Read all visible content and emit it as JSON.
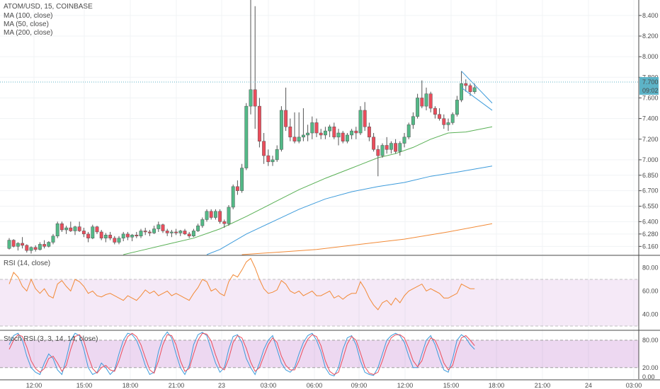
{
  "header": {
    "symbol": "ATOM/USD, 15, COINBASE",
    "studies": [
      "MA (100, close)",
      "MA (50, close)",
      "MA (200, close)"
    ]
  },
  "price_tag": {
    "price": "7.700",
    "countdown": "09:02",
    "color": "#5db3c7"
  },
  "chart_data": [
    {
      "type": "candlestick",
      "title": "ATOM/USD, 15, COINBASE",
      "xlabel": "",
      "ylabel": "",
      "x_ticks": [
        "12:00",
        "15:00",
        "18:00",
        "21:00",
        "23",
        "03:00",
        "06:00",
        "09:00",
        "12:00",
        "15:00",
        "18:00",
        "21:00",
        "24",
        "03:00"
      ],
      "y_ticks": [
        "8.400",
        "8.200",
        "8.000",
        "7.800",
        "7.600",
        "7.400",
        "7.200",
        "7.000",
        "6.850",
        "6.700",
        "6.550",
        "6.400",
        "6.280",
        "6.160"
      ],
      "ylim": [
        6.08,
        8.55
      ],
      "colors": {
        "up": "#53b987",
        "down": "#eb4d5c"
      },
      "candles": [
        [
          6.14,
          6.24,
          6.13,
          6.22
        ],
        [
          6.22,
          6.23,
          6.15,
          6.16
        ],
        [
          6.16,
          6.2,
          6.12,
          6.19
        ],
        [
          6.19,
          6.25,
          6.14,
          6.17
        ],
        [
          6.17,
          6.18,
          6.1,
          6.12
        ],
        [
          6.12,
          6.16,
          6.09,
          6.15
        ],
        [
          6.15,
          6.17,
          6.11,
          6.13
        ],
        [
          6.13,
          6.2,
          6.12,
          6.18
        ],
        [
          6.18,
          6.22,
          6.14,
          6.16
        ],
        [
          6.16,
          6.21,
          6.15,
          6.2
        ],
        [
          6.2,
          6.28,
          6.18,
          6.26
        ],
        [
          6.26,
          6.4,
          6.24,
          6.38
        ],
        [
          6.38,
          6.4,
          6.3,
          6.32
        ],
        [
          6.32,
          6.36,
          6.28,
          6.34
        ],
        [
          6.34,
          6.4,
          6.3,
          6.31
        ],
        [
          6.31,
          6.36,
          6.27,
          6.35
        ],
        [
          6.35,
          6.4,
          6.3,
          6.31
        ],
        [
          6.31,
          6.34,
          6.25,
          6.28
        ],
        [
          6.28,
          6.3,
          6.2,
          6.24
        ],
        [
          6.24,
          6.37,
          6.23,
          6.35
        ],
        [
          6.35,
          6.36,
          6.28,
          6.3
        ],
        [
          6.3,
          6.32,
          6.22,
          6.24
        ],
        [
          6.24,
          6.29,
          6.2,
          6.27
        ],
        [
          6.27,
          6.3,
          6.22,
          6.24
        ],
        [
          6.24,
          6.26,
          6.18,
          6.2
        ],
        [
          6.2,
          6.26,
          6.18,
          6.24
        ],
        [
          6.24,
          6.3,
          6.21,
          6.28
        ],
        [
          6.28,
          6.3,
          6.22,
          6.25
        ],
        [
          6.25,
          6.28,
          6.21,
          6.27
        ],
        [
          6.27,
          6.3,
          6.24,
          6.26
        ],
        [
          6.26,
          6.33,
          6.24,
          6.31
        ],
        [
          6.31,
          6.34,
          6.27,
          6.3
        ],
        [
          6.3,
          6.32,
          6.26,
          6.29
        ],
        [
          6.29,
          6.36,
          6.28,
          6.33
        ],
        [
          6.33,
          6.4,
          6.3,
          6.37
        ],
        [
          6.37,
          6.38,
          6.29,
          6.31
        ],
        [
          6.31,
          6.33,
          6.26,
          6.29
        ],
        [
          6.29,
          6.32,
          6.25,
          6.3
        ],
        [
          6.3,
          6.33,
          6.27,
          6.29
        ],
        [
          6.29,
          6.32,
          6.26,
          6.31
        ],
        [
          6.31,
          6.33,
          6.27,
          6.28
        ],
        [
          6.28,
          6.3,
          6.24,
          6.26
        ],
        [
          6.26,
          6.33,
          6.25,
          6.31
        ],
        [
          6.31,
          6.38,
          6.3,
          6.36
        ],
        [
          6.36,
          6.44,
          6.34,
          6.42
        ],
        [
          6.42,
          6.52,
          6.4,
          6.5
        ],
        [
          6.5,
          6.52,
          6.42,
          6.44
        ],
        [
          6.44,
          6.52,
          6.42,
          6.5
        ],
        [
          6.5,
          6.52,
          6.38,
          6.4
        ],
        [
          6.4,
          6.42,
          6.34,
          6.38
        ],
        [
          6.38,
          6.56,
          6.36,
          6.54
        ],
        [
          6.54,
          6.76,
          6.52,
          6.74
        ],
        [
          6.74,
          6.8,
          6.66,
          6.7
        ],
        [
          6.7,
          6.96,
          6.68,
          6.92
        ],
        [
          6.92,
          7.55,
          6.9,
          7.52
        ],
        [
          7.52,
          8.55,
          7.44,
          7.68
        ],
        [
          7.68,
          8.49,
          7.3,
          7.52
        ],
        [
          7.52,
          7.6,
          7.12,
          7.18
        ],
        [
          7.18,
          7.26,
          6.96,
          7.04
        ],
        [
          7.04,
          7.1,
          6.94,
          6.98
        ],
        [
          6.98,
          7.04,
          6.94,
          7.0
        ],
        [
          7.0,
          7.14,
          6.98,
          7.1
        ],
        [
          7.1,
          7.52,
          7.08,
          7.48
        ],
        [
          7.48,
          7.7,
          7.28,
          7.32
        ],
        [
          7.32,
          7.4,
          7.18,
          7.22
        ],
        [
          7.22,
          7.46,
          7.16,
          7.18
        ],
        [
          7.18,
          7.46,
          7.16,
          7.22
        ],
        [
          7.22,
          7.5,
          7.18,
          7.24
        ],
        [
          7.24,
          7.34,
          7.18,
          7.26
        ],
        [
          7.26,
          7.42,
          7.2,
          7.36
        ],
        [
          7.36,
          7.4,
          7.22,
          7.26
        ],
        [
          7.26,
          7.3,
          7.2,
          7.24
        ],
        [
          7.24,
          7.32,
          7.2,
          7.28
        ],
        [
          7.28,
          7.34,
          7.22,
          7.32
        ],
        [
          7.32,
          7.36,
          7.2,
          7.22
        ],
        [
          7.22,
          7.3,
          7.14,
          7.26
        ],
        [
          7.26,
          7.28,
          7.16,
          7.18
        ],
        [
          7.18,
          7.26,
          7.16,
          7.24
        ],
        [
          7.24,
          7.3,
          7.2,
          7.28
        ],
        [
          7.28,
          7.32,
          7.2,
          7.26
        ],
        [
          7.26,
          7.52,
          7.24,
          7.48
        ],
        [
          7.48,
          7.56,
          7.28,
          7.32
        ],
        [
          7.32,
          7.36,
          7.18,
          7.22
        ],
        [
          7.22,
          7.26,
          7.08,
          7.1
        ],
        [
          7.1,
          7.14,
          6.84,
          7.04
        ],
        [
          7.04,
          7.16,
          7.02,
          7.14
        ],
        [
          7.14,
          7.22,
          7.06,
          7.1
        ],
        [
          7.1,
          7.18,
          7.06,
          7.16
        ],
        [
          7.16,
          7.2,
          7.06,
          7.08
        ],
        [
          7.08,
          7.18,
          7.04,
          7.16
        ],
        [
          7.16,
          7.26,
          7.12,
          7.22
        ],
        [
          7.22,
          7.36,
          7.2,
          7.34
        ],
        [
          7.34,
          7.46,
          7.3,
          7.42
        ],
        [
          7.42,
          7.64,
          7.4,
          7.6
        ],
        [
          7.6,
          7.77,
          7.5,
          7.52
        ],
        [
          7.52,
          7.7,
          7.48,
          7.64
        ],
        [
          7.64,
          7.66,
          7.46,
          7.5
        ],
        [
          7.5,
          7.52,
          7.4,
          7.44
        ],
        [
          7.44,
          7.5,
          7.38,
          7.4
        ],
        [
          7.4,
          7.44,
          7.3,
          7.34
        ],
        [
          7.34,
          7.4,
          7.28,
          7.36
        ],
        [
          7.36,
          7.46,
          7.34,
          7.44
        ],
        [
          7.44,
          7.62,
          7.42,
          7.58
        ],
        [
          7.58,
          7.86,
          7.56,
          7.74
        ],
        [
          7.74,
          7.78,
          7.66,
          7.72
        ],
        [
          7.72,
          7.74,
          7.62,
          7.66
        ],
        [
          7.66,
          7.74,
          7.64,
          7.7
        ]
      ],
      "series": [
        {
          "name": "MA (50, close)",
          "color": "#59b055",
          "values": [
            [
              26,
              6.08
            ],
            [
              30,
              6.12
            ],
            [
              36,
              6.18
            ],
            [
              42,
              6.24
            ],
            [
              48,
              6.33
            ],
            [
              54,
              6.45
            ],
            [
              60,
              6.58
            ],
            [
              66,
              6.71
            ],
            [
              72,
              6.82
            ],
            [
              78,
              6.92
            ],
            [
              84,
              7.02
            ],
            [
              88,
              7.06
            ],
            [
              92,
              7.12
            ],
            [
              96,
              7.2
            ],
            [
              100,
              7.26
            ],
            [
              104,
              7.27
            ],
            [
              110,
              7.32
            ]
          ]
        },
        {
          "name": "MA (100, close)",
          "color": "#3d9bdb",
          "values": [
            [
              45,
              6.08
            ],
            [
              48,
              6.13
            ],
            [
              54,
              6.28
            ],
            [
              60,
              6.4
            ],
            [
              66,
              6.52
            ],
            [
              72,
              6.62
            ],
            [
              78,
              6.69
            ],
            [
              84,
              6.74
            ],
            [
              90,
              6.78
            ],
            [
              96,
              6.84
            ],
            [
              102,
              6.88
            ],
            [
              110,
              6.94
            ]
          ]
        },
        {
          "name": "MA (200, close)",
          "color": "#f28a37",
          "values": [
            [
              53,
              6.08
            ],
            [
              60,
              6.1
            ],
            [
              70,
              6.13
            ],
            [
              80,
              6.18
            ],
            [
              90,
              6.23
            ],
            [
              100,
              6.3
            ],
            [
              110,
              6.38
            ]
          ]
        }
      ],
      "drawings": {
        "channel": [
          [
            [
              103,
              7.86
            ],
            [
              110,
              7.55
            ]
          ],
          [
            [
              103,
              7.7
            ],
            [
              110,
              7.48
            ]
          ]
        ],
        "color": "#3d9bdb"
      }
    },
    {
      "type": "line",
      "title": "RSI (14, close)",
      "xlabel": "",
      "ylabel": "",
      "y_ticks": [
        "80.00",
        "60.00",
        "40.00"
      ],
      "ylim": [
        27,
        90
      ],
      "band": [
        30,
        70
      ],
      "series": [
        {
          "name": "RSI (14, close)",
          "color": "#f28a37",
          "values": [
            66,
            76,
            72,
            64,
            60,
            70,
            62,
            58,
            62,
            56,
            54,
            66,
            69,
            64,
            60,
            70,
            68,
            64,
            58,
            60,
            56,
            55,
            57,
            58,
            56,
            54,
            52,
            56,
            54,
            52,
            56,
            61,
            58,
            60,
            56,
            58,
            60,
            56,
            58,
            56,
            54,
            52,
            58,
            63,
            70,
            68,
            60,
            62,
            58,
            56,
            68,
            74,
            72,
            78,
            85,
            88,
            80,
            70,
            62,
            58,
            59,
            61,
            69,
            66,
            60,
            58,
            60,
            56,
            58,
            60,
            56,
            56,
            58,
            60,
            54,
            56,
            53,
            56,
            58,
            58,
            68,
            62,
            54,
            48,
            44,
            50,
            52,
            48,
            54,
            50,
            56,
            60,
            62,
            64,
            66,
            60,
            62,
            60,
            58,
            54,
            54,
            56,
            58,
            66,
            64,
            62,
            62
          ]
        }
      ]
    },
    {
      "type": "line",
      "title": "Stoch RSI (3, 3, 14, 14, close)",
      "xlabel": "",
      "ylabel": "",
      "y_ticks": [
        "80.00",
        "20.00",
        "0.00"
      ],
      "ylim": [
        -5,
        100
      ],
      "band": [
        20,
        80
      ],
      "series": [
        {
          "name": "%K",
          "color": "#3d9bdb",
          "values": [
            70,
            90,
            95,
            80,
            45,
            20,
            10,
            5,
            30,
            50,
            40,
            15,
            5,
            40,
            80,
            95,
            90,
            60,
            20,
            5,
            10,
            30,
            20,
            5,
            15,
            50,
            80,
            95,
            92,
            80,
            55,
            25,
            5,
            10,
            55,
            85,
            98,
            85,
            50,
            20,
            5,
            25,
            70,
            92,
            97,
            90,
            60,
            30,
            10,
            20,
            60,
            88,
            92,
            75,
            40,
            20,
            5,
            30,
            60,
            80,
            90,
            60,
            30,
            15,
            10,
            20,
            50,
            75,
            90,
            95,
            80,
            55,
            20,
            5,
            2,
            20,
            60,
            85,
            90,
            70,
            35,
            10,
            5,
            3,
            20,
            50,
            80,
            90,
            95,
            90,
            75,
            45,
            20,
            20,
            50,
            80,
            90,
            70,
            40,
            15,
            10,
            40,
            80,
            92,
            85,
            70,
            60
          ]
        },
        {
          "name": "%D",
          "color": "#eb4d5c",
          "values": [
            60,
            80,
            92,
            88,
            65,
            35,
            18,
            10,
            18,
            40,
            45,
            30,
            12,
            25,
            60,
            88,
            92,
            78,
            45,
            18,
            8,
            20,
            25,
            15,
            12,
            35,
            65,
            88,
            95,
            88,
            70,
            42,
            15,
            8,
            35,
            70,
            92,
            90,
            70,
            35,
            12,
            18,
            50,
            80,
            95,
            93,
            78,
            48,
            22,
            15,
            40,
            75,
            90,
            85,
            62,
            32,
            12,
            20,
            45,
            70,
            85,
            75,
            45,
            25,
            15,
            15,
            35,
            62,
            82,
            92,
            88,
            68,
            35,
            12,
            5,
            10,
            40,
            72,
            88,
            80,
            52,
            22,
            8,
            5,
            10,
            35,
            65,
            85,
            92,
            92,
            85,
            62,
            35,
            22,
            35,
            65,
            85,
            80,
            58,
            30,
            15,
            25,
            60,
            85,
            90,
            80,
            68
          ]
        }
      ]
    }
  ]
}
